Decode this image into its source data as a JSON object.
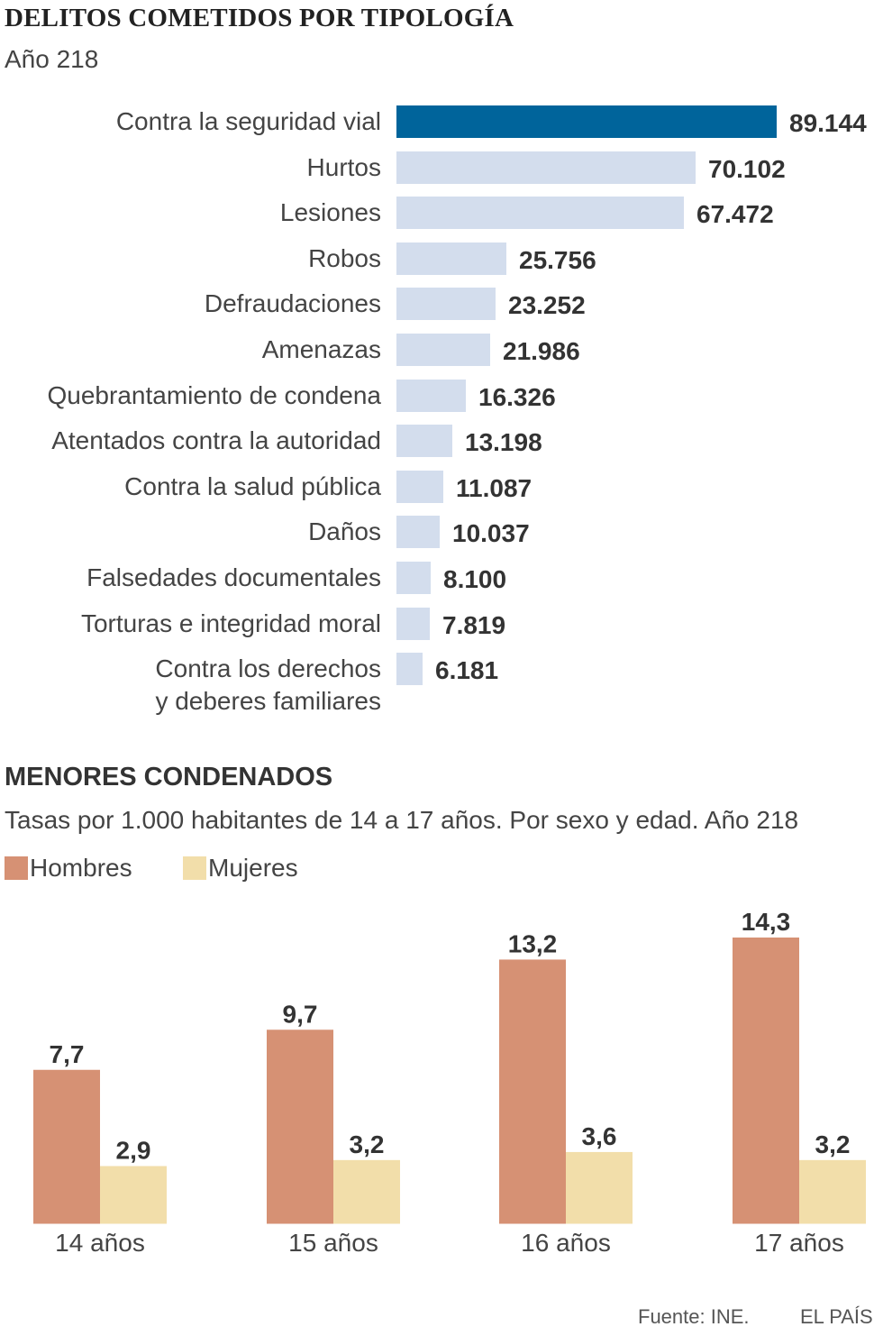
{
  "chart_data": [
    {
      "type": "bar",
      "orientation": "horizontal",
      "title": "DELITOS COMETIDOS POR TIPOLOGÍA",
      "subtitle": "Año 218",
      "categories": [
        "Contra la seguridad vial",
        "Hurtos",
        "Lesiones",
        "Robos",
        "Defraudaciones",
        "Amenazas",
        "Quebrantamiento de condena",
        "Atentados contra la autoridad",
        "Contra la salud pública",
        "Daños",
        "Falsedades documentales",
        "Torturas e integridad moral",
        "Contra los derechos\ny deberes familiares"
      ],
      "values": [
        89144,
        70102,
        67472,
        25756,
        23252,
        21986,
        16326,
        13198,
        11087,
        10037,
        8100,
        7819,
        6181
      ],
      "value_labels": [
        "89.144",
        "70.102",
        "67.472",
        "25.756",
        "23.252",
        "21.986",
        "16.326",
        "13.198",
        "11.087",
        "10.037",
        "8.100",
        "7.819",
        "6.181"
      ],
      "xlim": [
        0,
        89144
      ],
      "grid": false,
      "colors": {
        "highlight": "#00649b",
        "default": "#d3dded"
      }
    },
    {
      "type": "bar",
      "title": "MENORES CONDENADOS",
      "subtitle": "Tasas por 1.000 habitantes de 14 a 17 años. Por sexo y edad. Año 218",
      "categories": [
        "14 años",
        "15 años",
        "16 años",
        "17 años"
      ],
      "series": [
        {
          "name": "Hombres",
          "values": [
            7.7,
            9.7,
            13.2,
            14.3
          ],
          "labels": [
            "7,7",
            "9,7",
            "13,2",
            "14,3"
          ],
          "color": "#d69174"
        },
        {
          "name": "Mujeres",
          "values": [
            2.9,
            3.2,
            3.6,
            3.2
          ],
          "labels": [
            "2,9",
            "3,2",
            "3,6",
            "3,2"
          ],
          "color": "#f2deaa"
        }
      ],
      "ylim": [
        0,
        14.3
      ],
      "grid": false,
      "legend": "top-left"
    }
  ],
  "footer": {
    "source": "Fuente: INE.",
    "brand": "EL PAÍS"
  }
}
